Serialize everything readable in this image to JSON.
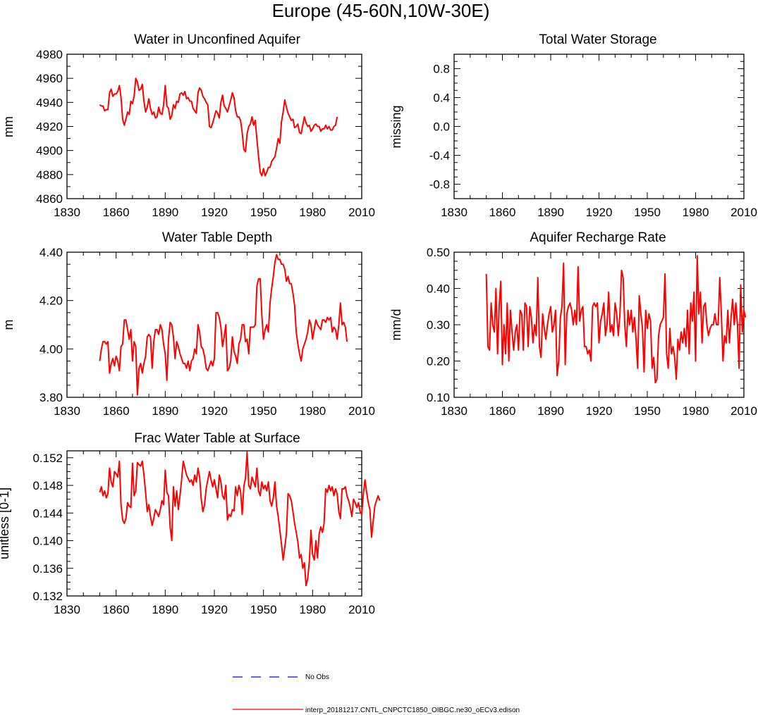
{
  "figure_title": "Europe (45-60N,10W-30E)",
  "colors": {
    "model": "#ff0000",
    "obs": "#0000ff",
    "axis": "#000000"
  },
  "legend": {
    "obs_label": "No Obs",
    "model_label": "interp_20181217.CNTL_CNPCTC1850_OIBGC.ne30_oECv3.edison"
  },
  "chart_data": [
    {
      "id": "p1",
      "type": "line",
      "title": "Water in Unconfined Aquifer",
      "ylabel": "mm",
      "xlim": [
        1830,
        2010
      ],
      "ylim": [
        4860,
        4980
      ],
      "xticks": [
        1830,
        1860,
        1890,
        1920,
        1950,
        1980,
        2010
      ],
      "yticks": [
        4860,
        4880,
        4900,
        4920,
        4940,
        4960,
        4980
      ],
      "yticklabels": [
        "4860",
        "4880",
        "4900",
        "4920",
        "4940",
        "4960",
        "4980"
      ],
      "ytick_minor": 10,
      "xstart": 1850,
      "series": [
        {
          "name": "model",
          "values": [
            4938,
            4937,
            4937,
            4933,
            4934,
            4934,
            4948,
            4951,
            4945,
            4947,
            4947,
            4949,
            4954,
            4944,
            4926,
            4921,
            4926,
            4932,
            4930,
            4941,
            4939,
            4945,
            4960,
            4957,
            4950,
            4951,
            4955,
            4941,
            4932,
            4936,
            4943,
            4935,
            4930,
            4932,
            4927,
            4928,
            4936,
            4931,
            4930,
            4938,
            4954,
            4937,
            4935,
            4926,
            4929,
            4938,
            4935,
            4941,
            4940,
            4947,
            4948,
            4946,
            4949,
            4943,
            4944,
            4941,
            4941,
            4935,
            4933,
            4931,
            4948,
            4952,
            4950,
            4945,
            4943,
            4940,
            4938,
            4920,
            4919,
            4923,
            4928,
            4933,
            4931,
            4927,
            4940,
            4946,
            4937,
            4935,
            4932,
            4937,
            4942,
            4948,
            4944,
            4933,
            4928,
            4928,
            4925,
            4915,
            4901,
            4899,
            4914,
            4920,
            4922,
            4928,
            4921,
            4925,
            4909,
            4895,
            4882,
            4879,
            4885,
            4879,
            4882,
            4886,
            4886,
            4891,
            4893,
            4895,
            4902,
            4910,
            4906,
            4924,
            4932,
            4942,
            4936,
            4931,
            4928,
            4925,
            4926,
            4919,
            4920,
            4922,
            4915,
            4914,
            4921,
            4928,
            4923,
            4920,
            4921,
            4916,
            4918,
            4921,
            4922,
            4920,
            4920,
            4916,
            4918,
            4918,
            4921,
            4918,
            4920,
            4917,
            4917,
            4920,
            4921,
            4928
          ]
        }
      ]
    },
    {
      "id": "p2",
      "type": "line",
      "title": "Total Water Storage",
      "ylabel": "missing",
      "xlim": [
        1830,
        2010
      ],
      "ylim": [
        -1,
        1
      ],
      "xticks": [
        1830,
        1860,
        1890,
        1920,
        1950,
        1980,
        2010
      ],
      "yticks": [
        -0.8,
        -0.4,
        0.0,
        0.4,
        0.8
      ],
      "yticklabels": [
        "-0.8",
        "-0.4",
        "0.0",
        "0.4",
        "0.8"
      ],
      "ytick_minor": 0.1,
      "series": []
    },
    {
      "id": "p3",
      "type": "line",
      "title": "Water Table Depth",
      "ylabel": "m",
      "xlim": [
        1830,
        2010
      ],
      "ylim": [
        3.8,
        4.4
      ],
      "xticks": [
        1830,
        1860,
        1890,
        1920,
        1950,
        1980,
        2010
      ],
      "yticks": [
        3.8,
        4.0,
        4.2,
        4.4
      ],
      "yticklabels": [
        "3.80",
        "4.00",
        "4.20",
        "4.40"
      ],
      "ytick_minor": 0.05,
      "xstart": 1850,
      "series": [
        {
          "name": "model",
          "values": [
            3.95,
            4.0,
            4.03,
            4.03,
            4.02,
            4.03,
            3.9,
            3.94,
            3.96,
            3.93,
            3.97,
            3.95,
            3.91,
            4.01,
            4.02,
            4.12,
            4.12,
            4.08,
            4.04,
            4.08,
            3.95,
            4.03,
            4.01,
            3.81,
            3.92,
            3.94,
            3.9,
            3.94,
            3.97,
            4.05,
            4.06,
            4.05,
            3.92,
            4.03,
            4.08,
            4.08,
            4.06,
            4.1,
            4.08,
            4.02,
            3.98,
            3.87,
            4.04,
            4.11,
            4.1,
            4.05,
            3.96,
            4.03,
            4.01,
            3.98,
            3.96,
            3.94,
            3.94,
            3.92,
            3.95,
            3.91,
            3.95,
            3.96,
            4.0,
            3.98,
            4.1,
            4.07,
            4.01,
            4.0,
            3.97,
            3.92,
            3.91,
            3.93,
            3.95,
            3.93,
            3.96,
            4.15,
            4.15,
            4.13,
            4.09,
            4.01,
            4.05,
            4.1,
            3.91,
            3.92,
            3.95,
            4.05,
            3.99,
            3.97,
            3.94,
            4.02,
            4.04,
            4.1,
            4.1,
            4.03,
            4.04,
            3.98,
            4.09,
            4.09,
            4.09,
            4.1,
            4.26,
            4.29,
            4.29,
            4.14,
            4.04,
            4.08,
            4.1,
            4.07,
            4.19,
            4.25,
            4.3,
            4.36,
            4.39,
            4.37,
            4.37,
            4.35,
            4.35,
            4.33,
            4.28,
            4.3,
            4.27,
            4.27,
            4.23,
            4.18,
            4.07,
            4.02,
            3.98,
            3.95,
            4.0,
            4.02,
            4.04,
            4.07,
            4.12,
            4.1,
            4.04,
            4.08,
            4.12,
            4.1,
            4.09,
            4.08,
            4.12,
            4.12,
            4.11,
            4.13,
            4.12,
            4.13,
            4.07,
            4.09,
            4.08,
            4.04,
            4.1,
            4.19,
            4.1,
            4.11,
            4.09,
            4.03
          ]
        }
      ]
    },
    {
      "id": "p4",
      "type": "line",
      "title": "Aquifer Recharge Rate",
      "ylabel": "mm/d",
      "xlim": [
        1830,
        2010
      ],
      "ylim": [
        0.1,
        0.5
      ],
      "xticks": [
        1830,
        1860,
        1890,
        1920,
        1950,
        1980,
        2010
      ],
      "yticks": [
        0.1,
        0.2,
        0.3,
        0.4,
        0.5
      ],
      "yticklabels": [
        "0.10",
        "0.20",
        "0.30",
        "0.40",
        "0.50"
      ],
      "ytick_minor": 0.025,
      "xstart": 1850,
      "series": [
        {
          "name": "model",
          "values": [
            0.44,
            0.24,
            0.23,
            0.36,
            0.3,
            0.28,
            0.4,
            0.22,
            0.35,
            0.42,
            0.19,
            0.3,
            0.22,
            0.36,
            0.2,
            0.34,
            0.28,
            0.23,
            0.28,
            0.3,
            0.23,
            0.34,
            0.33,
            0.23,
            0.36,
            0.35,
            0.24,
            0.35,
            0.32,
            0.25,
            0.3,
            0.27,
            0.43,
            0.24,
            0.21,
            0.33,
            0.29,
            0.26,
            0.3,
            0.33,
            0.35,
            0.28,
            0.3,
            0.34,
            0.16,
            0.2,
            0.32,
            0.35,
            0.47,
            0.19,
            0.33,
            0.35,
            0.36,
            0.34,
            0.3,
            0.34,
            0.3,
            0.46,
            0.31,
            0.34,
            0.35,
            0.24,
            0.24,
            0.22,
            0.23,
            0.2,
            0.35,
            0.36,
            0.35,
            0.36,
            0.25,
            0.31,
            0.33,
            0.36,
            0.27,
            0.3,
            0.39,
            0.28,
            0.3,
            0.27,
            0.36,
            0.33,
            0.27,
            0.33,
            0.45,
            0.43,
            0.3,
            0.24,
            0.34,
            0.3,
            0.34,
            0.28,
            0.32,
            0.26,
            0.18,
            0.38,
            0.33,
            0.29,
            0.17,
            0.34,
            0.29,
            0.33,
            0.31,
            0.18,
            0.21,
            0.14,
            0.15,
            0.27,
            0.3,
            0.31,
            0.32,
            0.44,
            0.22,
            0.18,
            0.29,
            0.22,
            0.24,
            0.21,
            0.15,
            0.26,
            0.23,
            0.28,
            0.25,
            0.29,
            0.24,
            0.34,
            0.22,
            0.36,
            0.31,
            0.39,
            0.2,
            0.49,
            0.33,
            0.39,
            0.25,
            0.35,
            0.36,
            0.3,
            0.27,
            0.29,
            0.3,
            0.3,
            0.33,
            0.3,
            0.3,
            0.43,
            0.33,
            0.2,
            0.27,
            0.25,
            0.34,
            0.25,
            0.32,
            0.37,
            0.3,
            0.36,
            0.3,
            0.18,
            0.41,
            0.28,
            0.34,
            0.32
          ]
        }
      ]
    },
    {
      "id": "p5",
      "type": "line",
      "title": "Frac Water Table at Surface",
      "ylabel": "unitless [0-1]",
      "xlim": [
        1830,
        2010
      ],
      "ylim": [
        0.132,
        0.153
      ],
      "xticks": [
        1830,
        1860,
        1890,
        1920,
        1950,
        1980,
        2010
      ],
      "yticks": [
        0.132,
        0.136,
        0.14,
        0.144,
        0.148,
        0.152
      ],
      "yticklabels": [
        "0.132",
        "0.136",
        "0.140",
        "0.144",
        "0.148",
        "0.152"
      ],
      "ytick_minor": 0.001,
      "xstart": 1850,
      "series": [
        {
          "name": "model",
          "values": [
            0.147,
            0.1478,
            0.1465,
            0.1472,
            0.1462,
            0.1468,
            0.1505,
            0.1485,
            0.1478,
            0.15,
            0.1497,
            0.1492,
            0.1515,
            0.1452,
            0.143,
            0.1425,
            0.1432,
            0.1455,
            0.145,
            0.1448,
            0.1512,
            0.1465,
            0.1472,
            0.1513,
            0.151,
            0.1508,
            0.1515,
            0.1495,
            0.147,
            0.1442,
            0.1452,
            0.1435,
            0.1422,
            0.1432,
            0.1445,
            0.144,
            0.1435,
            0.1445,
            0.1458,
            0.1452,
            0.1502,
            0.147,
            0.1465,
            0.142,
            0.14,
            0.1478,
            0.145,
            0.1472,
            0.1445,
            0.1465,
            0.1488,
            0.1515,
            0.1505,
            0.1495,
            0.149,
            0.1485,
            0.1488,
            0.148,
            0.1495,
            0.1485,
            0.1505,
            0.1492,
            0.146,
            0.1442,
            0.1452,
            0.1475,
            0.1488,
            0.15,
            0.1488,
            0.1478,
            0.1488,
            0.1475,
            0.1462,
            0.1495,
            0.1485,
            0.1465,
            0.146,
            0.148,
            0.143,
            0.1438,
            0.1435,
            0.1445,
            0.1443,
            0.1478,
            0.1465,
            0.148,
            0.1472,
            0.1438,
            0.1478,
            0.149,
            0.1528,
            0.148,
            0.1475,
            0.1492,
            0.1485,
            0.1478,
            0.1505,
            0.1472,
            0.1465,
            0.1485,
            0.1475,
            0.148,
            0.1472,
            0.1485,
            0.1458,
            0.145,
            0.1462,
            0.1485,
            0.145,
            0.1435,
            0.1415,
            0.1395,
            0.1372,
            0.139,
            0.141,
            0.1468,
            0.1465,
            0.1458,
            0.1442,
            0.1425,
            0.1412,
            0.1398,
            0.1375,
            0.138,
            0.136,
            0.1368,
            0.1335,
            0.1345,
            0.137,
            0.1415,
            0.138,
            0.1372,
            0.14,
            0.1375,
            0.141,
            0.142,
            0.1412,
            0.1425,
            0.1475,
            0.147,
            0.148,
            0.1472,
            0.1478,
            0.1465,
            0.1475,
            0.1468,
            0.1442,
            0.1432,
            0.1475,
            0.1475,
            0.1478,
            0.1465,
            0.1458,
            0.1448,
            0.1435,
            0.146,
            0.1455,
            0.1448,
            0.1455,
            0.1442,
            0.1438,
            0.1468,
            0.1488,
            0.147,
            0.1455,
            0.1445,
            0.1405,
            0.1428,
            0.145,
            0.1458,
            0.1465,
            0.1458
          ]
        }
      ]
    }
  ]
}
